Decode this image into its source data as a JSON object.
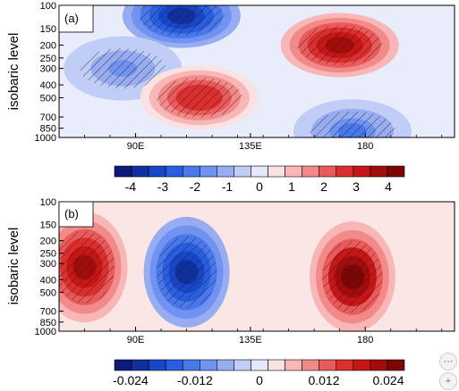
{
  "chart_data": [
    {
      "type": "heatmap",
      "panel_label": "(a)",
      "ylabel": "isobaric level",
      "yticks": [
        100,
        150,
        200,
        250,
        300,
        400,
        500,
        700,
        850,
        1000
      ],
      "xticks": [
        "90E",
        "135E",
        "180"
      ],
      "xtick_values": [
        90,
        135,
        180
      ],
      "xlim": [
        60,
        215
      ],
      "ylim": [
        1000,
        100
      ],
      "yscale": "log",
      "colorbar": {
        "ticks": [
          "-4",
          "-3",
          "-2",
          "-1",
          "0",
          "1",
          "2",
          "3",
          "4"
        ],
        "range": [
          -4.5,
          4.5
        ]
      },
      "hatching": "significant regions",
      "features": [
        {
          "kind": "negative",
          "lon": 108,
          "p": 120,
          "value": -4.0
        },
        {
          "kind": "negative",
          "lon": 85,
          "p": 300,
          "value": -1.5
        },
        {
          "kind": "positive",
          "lon": 115,
          "p": 500,
          "value": 3.0
        },
        {
          "kind": "positive",
          "lon": 170,
          "p": 200,
          "value": 4.0
        },
        {
          "kind": "negative",
          "lon": 175,
          "p": 900,
          "value": -2.0
        }
      ]
    },
    {
      "type": "heatmap",
      "panel_label": "(b)",
      "ylabel": "isobaric level",
      "yticks": [
        100,
        150,
        200,
        250,
        300,
        400,
        500,
        700,
        850,
        1000
      ],
      "xticks": [
        "90E",
        "135E",
        "180"
      ],
      "xtick_values": [
        90,
        135,
        180
      ],
      "xlim": [
        60,
        215
      ],
      "ylim": [
        1000,
        100
      ],
      "yscale": "log",
      "colorbar": {
        "ticks": [
          "-0.024",
          "-0.012",
          "0",
          "0.012",
          "0.024"
        ],
        "range": [
          -0.027,
          0.027
        ]
      },
      "hatching": "significant regions",
      "features": [
        {
          "kind": "positive",
          "lon": 70,
          "p": 320,
          "value": 0.024
        },
        {
          "kind": "negative",
          "lon": 110,
          "p": 350,
          "value": -0.024
        },
        {
          "kind": "positive",
          "lon": 175,
          "p": 380,
          "value": 0.027
        }
      ]
    }
  ],
  "colors": {
    "scale": [
      "#0c1a78",
      "#1030a0",
      "#1846c8",
      "#2a5ee0",
      "#4a78ea",
      "#7092f0",
      "#98acf2",
      "#c0cdf6",
      "#e4e8fa",
      "#fbe2e2",
      "#f8b6b6",
      "#f28a8a",
      "#ea5a5a",
      "#dc2e2e",
      "#c81616",
      "#a40c0c",
      "#7c0606"
    ]
  },
  "controls": {
    "settings_glyph": "⋯",
    "add_glyph": "+"
  }
}
